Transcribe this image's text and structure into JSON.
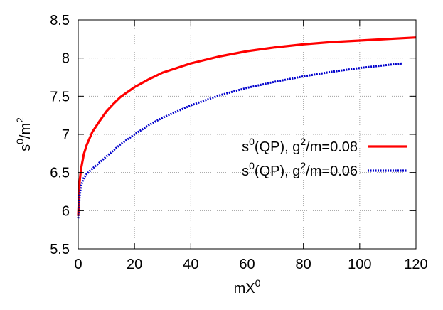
{
  "chart_data": {
    "type": "line",
    "xlabel": "mX",
    "xlabel_sup": "0",
    "ylabel": "s",
    "ylabel_sup": "0",
    "ylabel_tail": "/m",
    "ylabel_tail_sup": "2",
    "xlim": [
      0,
      120
    ],
    "ylim": [
      5.5,
      8.5
    ],
    "xticks": [
      0,
      20,
      40,
      60,
      80,
      100,
      120
    ],
    "xtick_labels": [
      "0",
      "20",
      "40",
      "60",
      "80",
      "100",
      "120"
    ],
    "yticks": [
      5.5,
      6,
      6.5,
      7,
      7.5,
      8,
      8.5
    ],
    "ytick_labels": [
      "5.5",
      "6",
      "6.5",
      "7",
      "7.5",
      "8",
      "8.5"
    ],
    "grid": true,
    "legend_position": "right",
    "series": [
      {
        "label_prefix": "s",
        "label_sup1": "0",
        "label_mid": "(QP), g",
        "label_sup2": "2",
        "label_tail": "/m=0.08",
        "color": "#ff0000",
        "style": "solid",
        "x": [
          0,
          0.5,
          1,
          2,
          3,
          5,
          7.5,
          10,
          12.5,
          15,
          20,
          25,
          30,
          40,
          50,
          60,
          70,
          80,
          90,
          100,
          110,
          120
        ],
        "y": [
          5.93,
          6.38,
          6.55,
          6.74,
          6.86,
          7.03,
          7.17,
          7.3,
          7.4,
          7.49,
          7.62,
          7.72,
          7.81,
          7.93,
          8.02,
          8.09,
          8.14,
          8.18,
          8.21,
          8.23,
          8.25,
          8.27
        ]
      },
      {
        "label_prefix": "s",
        "label_sup1": "0",
        "label_mid": "(QP), g",
        "label_sup2": "2",
        "label_tail": "/m=0.06",
        "color": "#0000cc",
        "style": "dotted",
        "x": [
          0,
          0.5,
          1,
          2,
          3,
          5,
          7.5,
          10,
          15,
          20,
          25,
          30,
          40,
          50,
          60,
          70,
          80,
          90,
          100,
          110,
          115
        ],
        "y": [
          5.9,
          6.2,
          6.33,
          6.43,
          6.48,
          6.55,
          6.63,
          6.71,
          6.87,
          7.0,
          7.12,
          7.22,
          7.38,
          7.51,
          7.61,
          7.69,
          7.76,
          7.82,
          7.87,
          7.91,
          7.93
        ]
      }
    ]
  }
}
